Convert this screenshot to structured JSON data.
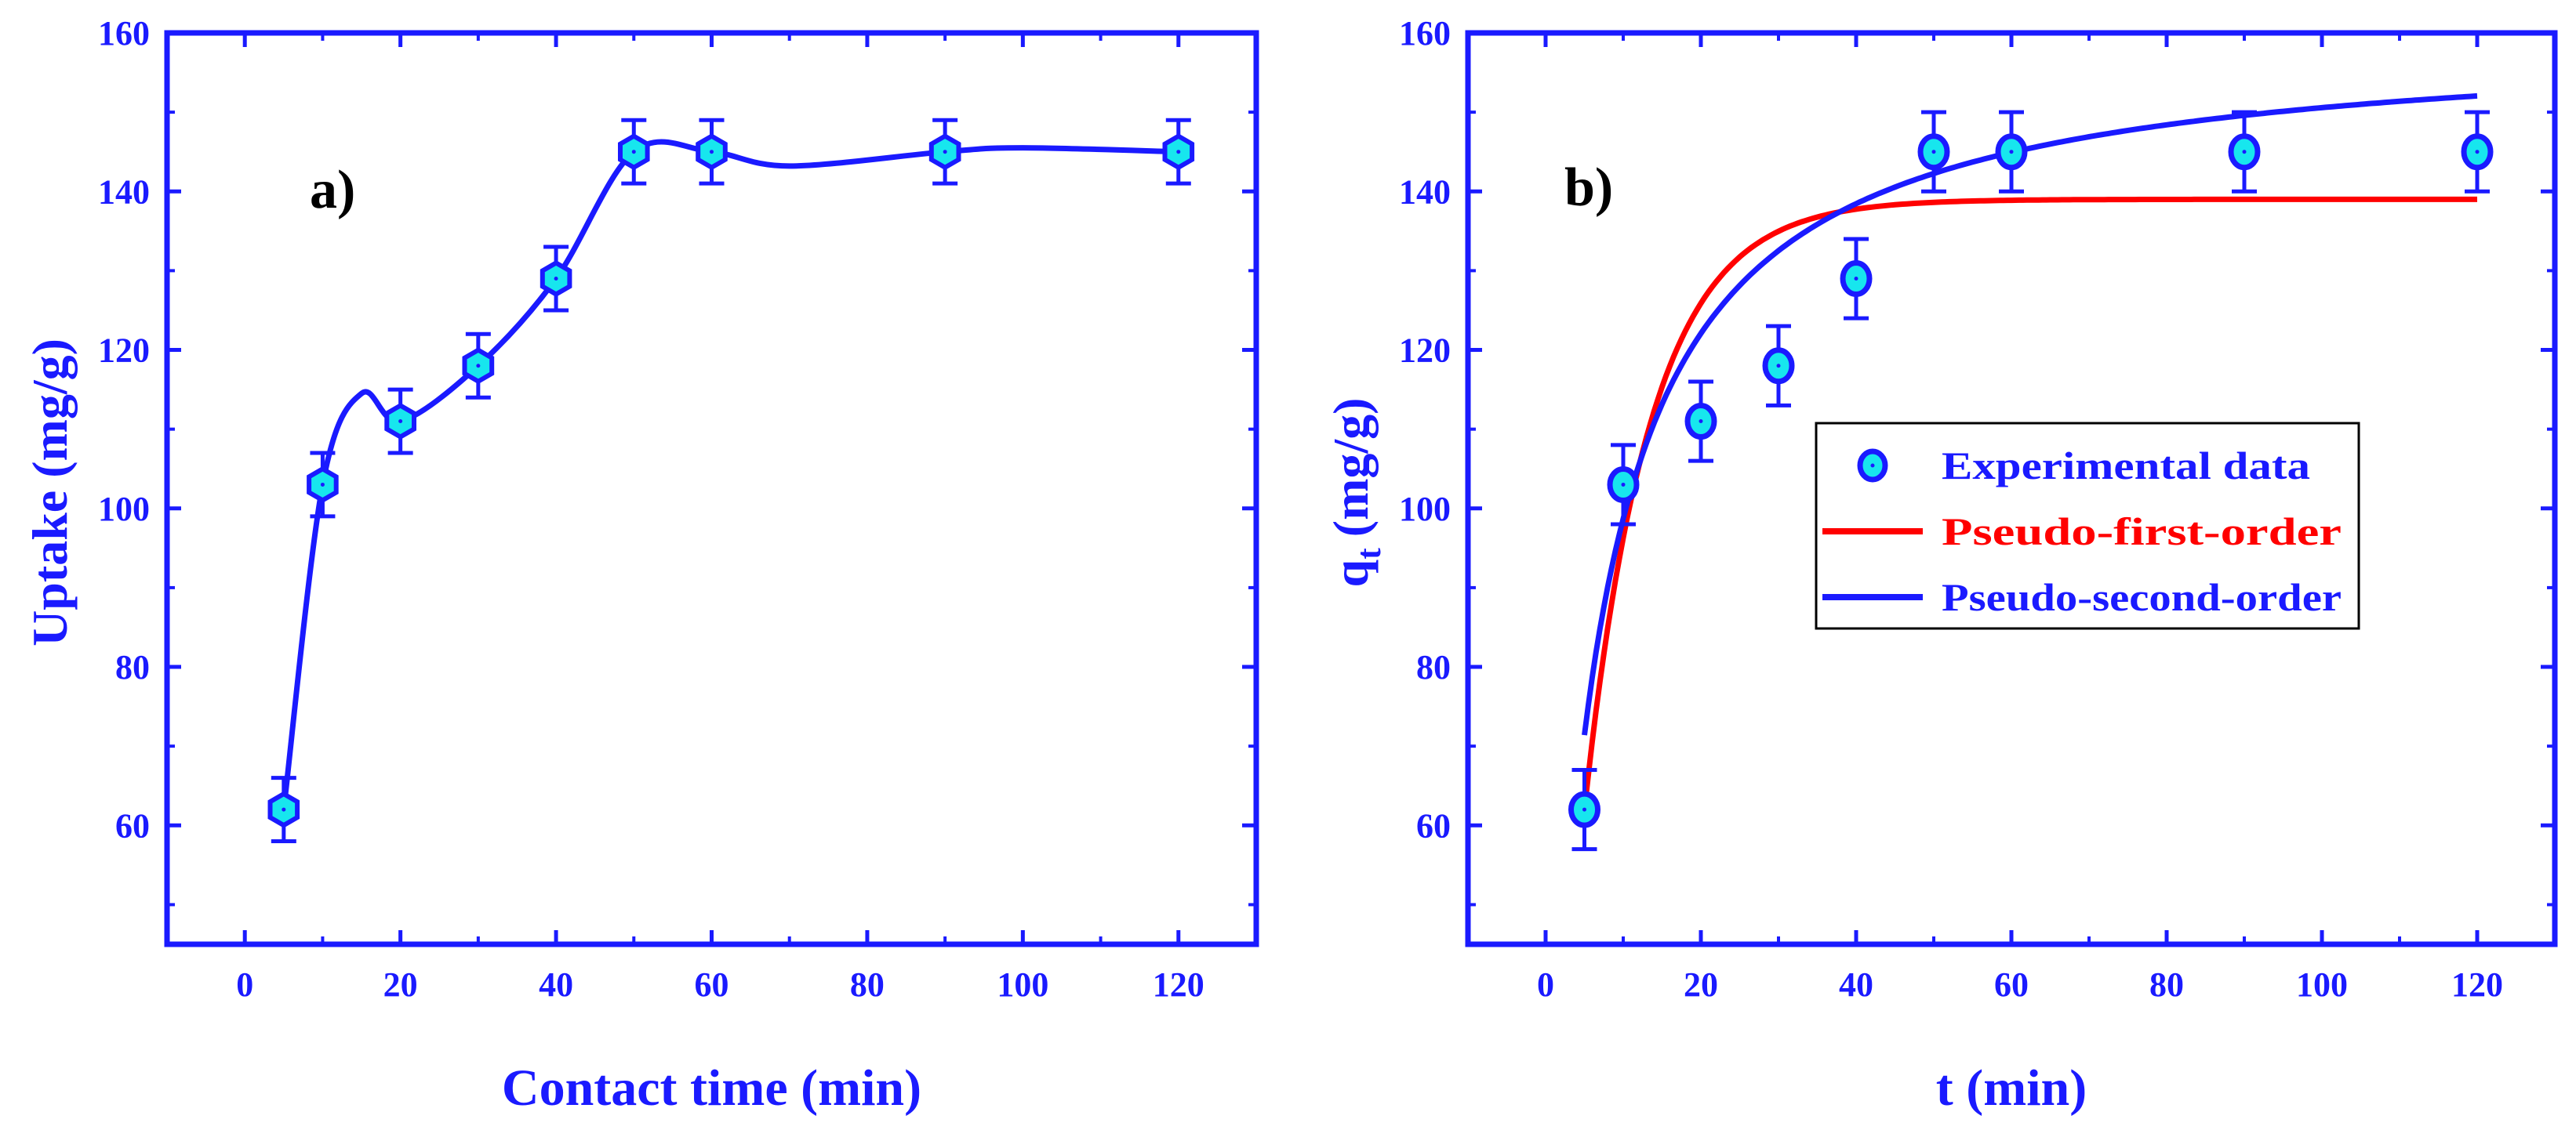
{
  "colors": {
    "axis": "#1a1aff",
    "marker_fill": "#17e6ee",
    "marker_edge": "#1a1aff",
    "pfo": "#ff0000",
    "pso": "#1a1aff",
    "ink": "#000000"
  },
  "chart_data": [
    {
      "type": "scatter",
      "panel_label": "a)",
      "xlabel": "Contact time (min)",
      "ylabel": "Uptake (mg/g)",
      "xlim": [
        -10,
        130
      ],
      "ylim": [
        45,
        160
      ],
      "xticks": [
        0,
        20,
        40,
        60,
        80,
        100,
        120
      ],
      "yticks": [
        60,
        80,
        100,
        120,
        140,
        160
      ],
      "grid": false,
      "marker": "hexagon",
      "series": [
        {
          "name": "Uptake",
          "x": [
            5,
            10,
            20,
            30,
            40,
            50,
            60,
            90,
            120
          ],
          "y": [
            62,
            103,
            111,
            118,
            129,
            145,
            145,
            145,
            145
          ],
          "err": [
            4,
            4,
            4,
            4,
            4,
            4,
            4,
            4,
            4
          ]
        }
      ],
      "smooth_curve": {
        "name": "Spline",
        "x": [
          5,
          10,
          15,
          20,
          30,
          40,
          50,
          60,
          70,
          90,
          100,
          120
        ],
        "y": [
          62,
          103,
          114.5,
          111,
          118,
          129,
          145,
          145,
          143.2,
          145,
          145.5,
          145
        ]
      }
    },
    {
      "type": "line",
      "panel_label": "b)",
      "xlabel": "t (min)",
      "ylabel": "q",
      "ylabel_subscript": "t",
      "ylabel_unit": "(mg/g)",
      "xlim": [
        -10,
        130
      ],
      "ylim": [
        45,
        160
      ],
      "xticks": [
        0,
        20,
        40,
        60,
        80,
        100,
        120
      ],
      "yticks": [
        60,
        80,
        100,
        120,
        140,
        160
      ],
      "grid": false,
      "legend_position": "center-right",
      "legend": [
        {
          "label": "Experimental data",
          "kind": "marker"
        },
        {
          "label": "Pseudo-first-order",
          "kind": "line",
          "color_key": "pfo"
        },
        {
          "label": "Pseudo-second-order",
          "kind": "line",
          "color_key": "pso"
        }
      ],
      "series": [
        {
          "name": "Experimental data",
          "x": [
            5,
            10,
            20,
            30,
            40,
            50,
            60,
            90,
            120
          ],
          "y": [
            62,
            103,
            111,
            118,
            129,
            145,
            145,
            145,
            145
          ],
          "err": [
            5,
            5,
            5,
            5,
            5,
            5,
            5,
            5,
            5
          ]
        }
      ],
      "models": [
        {
          "name": "Pseudo-first-order",
          "type": "pfo",
          "qe": 139,
          "k": 0.118,
          "x_range": [
            5,
            120
          ]
        },
        {
          "name": "Pseudo-second-order",
          "type": "pso",
          "qe": 159.9,
          "k": 0.001009,
          "x_range": [
            5,
            120
          ]
        }
      ]
    }
  ]
}
